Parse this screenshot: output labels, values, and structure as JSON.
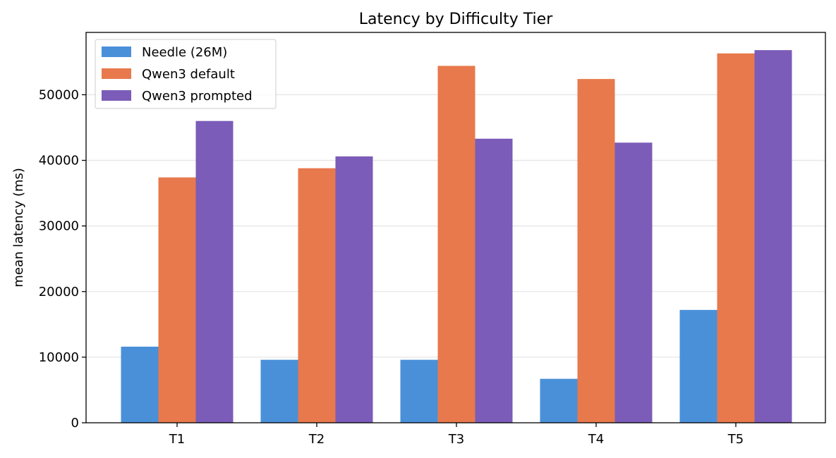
{
  "chart_data": {
    "type": "bar",
    "title": "Latency by Difficulty Tier",
    "xlabel": "",
    "ylabel": "mean latency (ms)",
    "categories": [
      "T1",
      "T2",
      "T3",
      "T4",
      "T5"
    ],
    "series": [
      {
        "name": "Needle (26M)",
        "color": "#4a90d9",
        "values": [
          11600,
          9600,
          9600,
          6700,
          17200
        ]
      },
      {
        "name": "Qwen3 default",
        "color": "#e8794c",
        "values": [
          37400,
          38800,
          54400,
          52400,
          56300
        ]
      },
      {
        "name": "Qwen3 prompted",
        "color": "#7b5cb8",
        "values": [
          46000,
          40600,
          43300,
          42700,
          56800
        ]
      }
    ],
    "ylim": [
      0,
      59500
    ],
    "yticks": [
      0,
      10000,
      20000,
      30000,
      40000,
      50000
    ],
    "ytick_labels": [
      "0",
      "10000",
      "20000",
      "30000",
      "40000",
      "50000"
    ],
    "grid": "horizontal",
    "legend_position": "top-left"
  }
}
